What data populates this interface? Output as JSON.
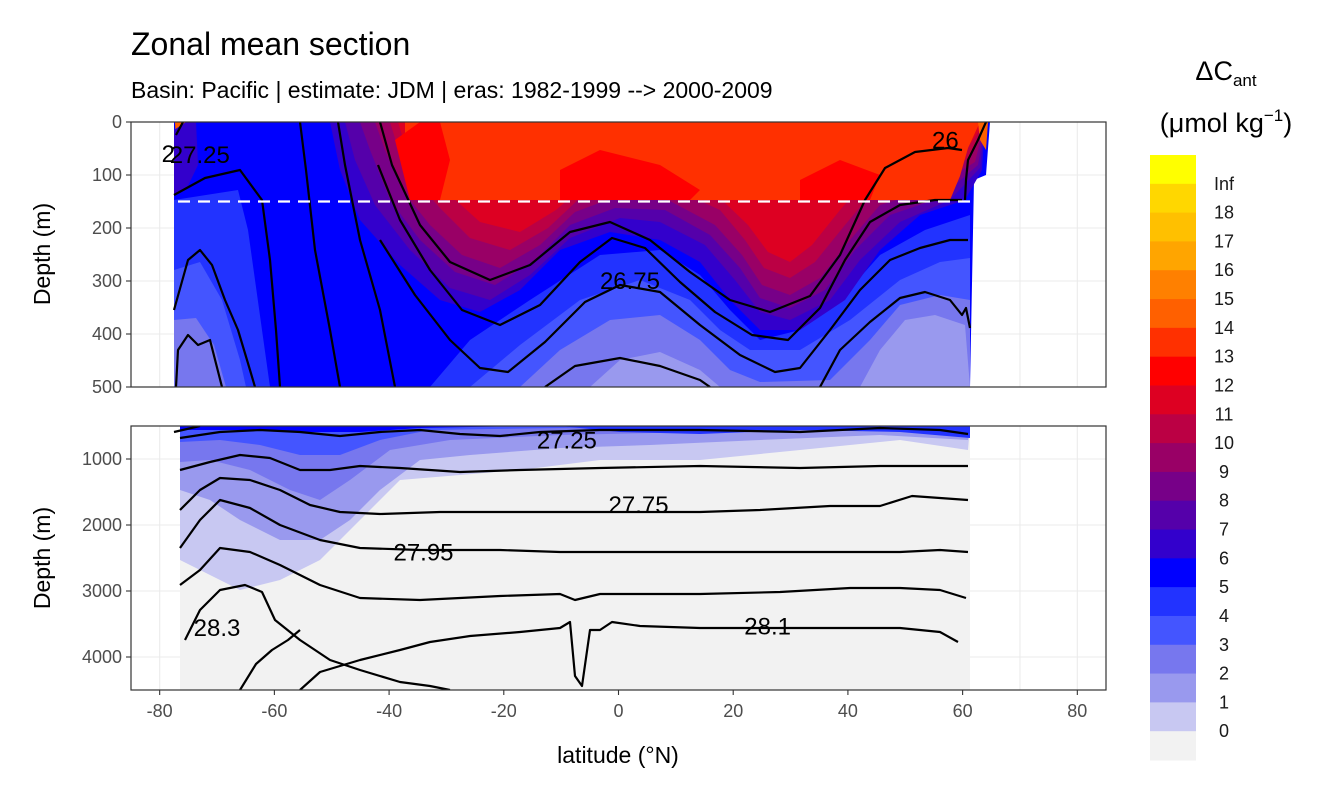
{
  "chart_data": {
    "type": "contour-section",
    "title": "Zonal mean section",
    "subtitle": "Basin: Pacific | estimate: JDM  | eras: 1982-1999 --> 2000-2009",
    "xlabel": "latitude (°N)",
    "ylabel": "Depth (m)",
    "xlim": [
      -85,
      85
    ],
    "x_ticks": [
      -80,
      -60,
      -40,
      -20,
      0,
      20,
      40,
      60,
      80
    ],
    "x_tick_labels": [
      "-80",
      "-60",
      "-40",
      "-20",
      "0",
      "20",
      "40",
      "60",
      "80"
    ],
    "reference_depth_m": 150,
    "upper_panel": {
      "ylim": [
        0,
        500
      ],
      "y_ticks": [
        0,
        100,
        200,
        300,
        400,
        500
      ],
      "y_tick_labels": [
        "0",
        "100",
        "200",
        "300",
        "400",
        "500"
      ],
      "contour_labels": [
        {
          "text": "26.75",
          "lat": 2,
          "depth": 300
        },
        {
          "text": "26",
          "lat": 57,
          "depth": 35
        },
        {
          "text": "27.25",
          "lat": -73,
          "depth": 62
        },
        {
          "text": "2",
          "lat": -78.5,
          "depth": 60
        }
      ]
    },
    "lower_panel": {
      "ylim": [
        500,
        4500
      ],
      "y_ticks": [
        1000,
        2000,
        3000,
        4000
      ],
      "y_tick_labels": [
        "1000",
        "2000",
        "3000",
        "4000"
      ],
      "contour_labels": [
        {
          "text": "27.25",
          "lat": -9,
          "depth": 720
        },
        {
          "text": "27.75",
          "lat": 3.5,
          "depth": 1700
        },
        {
          "text": "27.95",
          "lat": -34,
          "depth": 2420
        },
        {
          "text": "28.3",
          "lat": -70,
          "depth": 3560
        },
        {
          "text": "28.1",
          "lat": 26,
          "depth": 3540
        }
      ]
    },
    "colorbar": {
      "title_main": "ΔC",
      "title_sub": "ant",
      "units_prefix": "(μmol kg",
      "units_sup": "−1",
      "units_suffix": ")",
      "labels": [
        "Inf",
        "18",
        "17",
        "16",
        "15",
        "14",
        "13",
        "12",
        "11",
        "10",
        "9",
        "8",
        "7",
        "6",
        "5",
        "4",
        "3",
        "2",
        "1",
        "0"
      ],
      "colors": [
        "#ffff00",
        "#ffd700",
        "#ffc000",
        "#ffa500",
        "#ff8000",
        "#ff6000",
        "#ff3000",
        "#ff0000",
        "#dd0022",
        "#bb0044",
        "#990066",
        "#770088",
        "#5500aa",
        "#3300cc",
        "#0000ff",
        "#2233ff",
        "#4455ff",
        "#7777ee",
        "#9999ee",
        "#c8c8f2",
        "#f2f2f2"
      ]
    }
  }
}
